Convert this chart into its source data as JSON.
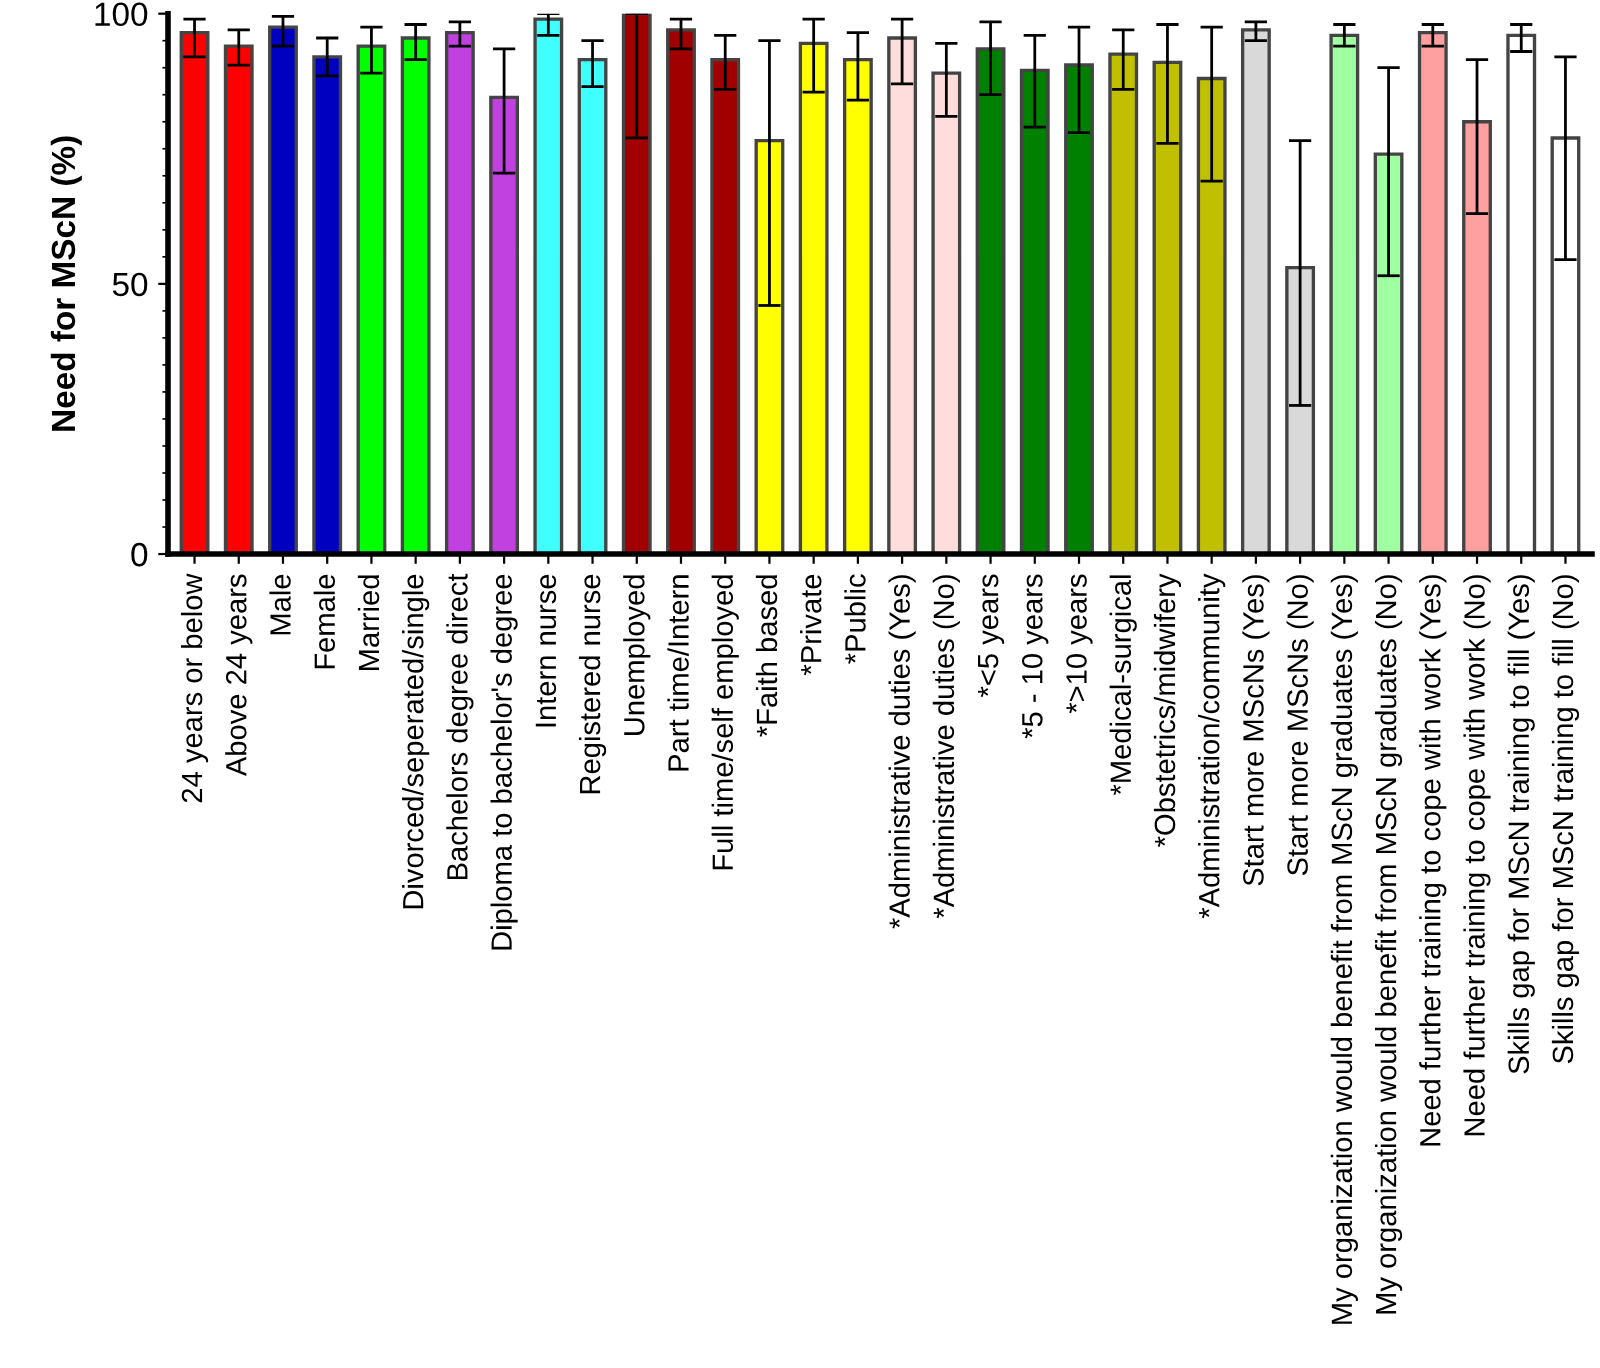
{
  "chart_data": {
    "type": "bar",
    "ylabel": "Need for MScN (%)",
    "categories": [
      "24 years or below",
      "Above 24 years",
      "Male",
      "Female",
      "Married",
      "Divorced/seperated/single",
      "Bachelors degree direct",
      "Diploma to bachelor's degree",
      "Intern nurse",
      "Registered nurse",
      "Unemployed",
      "Part time/Intern",
      "Full time/self employed",
      "*Faith based",
      "*Private",
      "*Public",
      "*Administrative duties (Yes)",
      "*Administrative duties (No)",
      "*<5 years",
      "*5 - 10 years",
      "*>10 years",
      "*Medical-surgical",
      "*Obstetrics/midwifery",
      "*Administration/community",
      "Start more MScNs (Yes)",
      "Start more MScNs (No)",
      "My organization would benefit from MScN graduates (Yes)",
      "My organization would benefit from MScN graduates (No)",
      "Need further training to cope with work (Yes)",
      "Need further training to cope with work (No)",
      "Skills gap for MScN training to fill (Yes)",
      "Skills gap for MScN training to fill (No)"
    ],
    "values": [
      96.5,
      94,
      97.5,
      92,
      94,
      95.5,
      96.5,
      84.5,
      99,
      91.5,
      100,
      97,
      91.5,
      76.5,
      94.5,
      91.5,
      95.5,
      89,
      93.5,
      89.5,
      90.5,
      92.5,
      91,
      88,
      97,
      53,
      96,
      74,
      96.5,
      80,
      96,
      77
    ],
    "errors": [
      [
        92,
        99
      ],
      [
        90.5,
        97
      ],
      [
        94,
        99.5
      ],
      [
        88.5,
        95.5
      ],
      [
        89,
        97.5
      ],
      [
        91.5,
        98
      ],
      [
        94,
        98.5
      ],
      [
        70.5,
        93.5
      ],
      [
        96,
        100
      ],
      [
        86.5,
        95
      ],
      [
        77,
        100
      ],
      [
        93.5,
        99
      ],
      [
        86,
        96
      ],
      [
        46,
        95
      ],
      [
        85.5,
        99
      ],
      [
        84,
        96.5
      ],
      [
        87,
        99
      ],
      [
        81,
        94.5
      ],
      [
        85,
        98.5
      ],
      [
        79,
        96
      ],
      [
        78,
        97.5
      ],
      [
        86,
        97
      ],
      [
        76,
        98
      ],
      [
        69,
        97.5
      ],
      [
        95,
        98.5
      ],
      [
        27.5,
        76.5
      ],
      [
        94,
        98
      ],
      [
        51.5,
        90
      ],
      [
        94,
        98
      ],
      [
        63,
        91.5
      ],
      [
        93,
        98
      ],
      [
        54.5,
        92
      ]
    ],
    "colors": [
      "#ff0000",
      "#ff0000",
      "#0000c0",
      "#0000c0",
      "#00ff00",
      "#00ff00",
      "#c040e0",
      "#c040e0",
      "#40ffff",
      "#40ffff",
      "#a00000",
      "#a00000",
      "#a00000",
      "#ffff00",
      "#ffff00",
      "#ffff00",
      "#ffdddd",
      "#ffdddd",
      "#008000",
      "#008000",
      "#008000",
      "#c0c000",
      "#c0c000",
      "#c0c000",
      "#d9d9d9",
      "#d9d9d9",
      "#a0ffa0",
      "#a0ffa0",
      "#ffa0a0",
      "#ffa0a0",
      "#ffffff",
      "#ffffff"
    ],
    "ylim": [
      0,
      100
    ],
    "yticks": [
      0,
      50,
      100
    ],
    "grid": false
  }
}
